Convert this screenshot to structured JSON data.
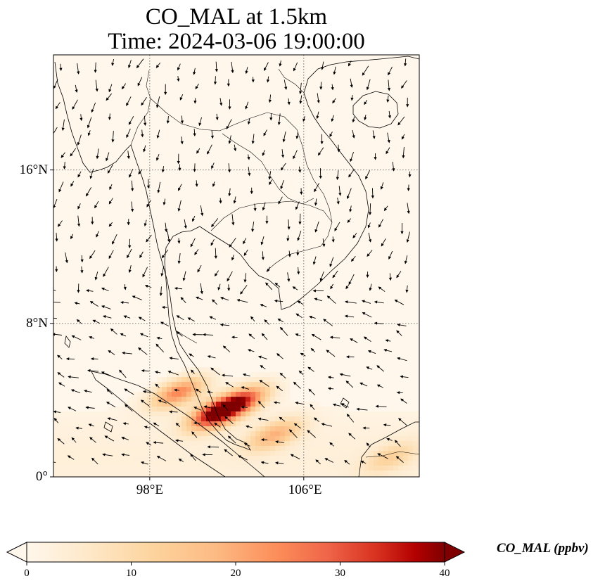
{
  "title_line1": "CO_MAL at 1.5km",
  "title_line2": "Time: 2024-03-06 19:00:00",
  "map": {
    "lon_range": [
      93,
      112
    ],
    "lat_range": [
      0,
      22
    ],
    "y_ticks": [
      {
        "value": 16,
        "label": "16°N"
      },
      {
        "value": 8,
        "label": "8°N"
      },
      {
        "value": 0,
        "label": "0°"
      }
    ],
    "x_ticks": [
      {
        "value": 98,
        "label": "98°E"
      },
      {
        "value": 106,
        "label": "106°E"
      }
    ],
    "gridlines": "dotted",
    "colormap": "OrRd",
    "plumes": [
      {
        "lon": 101.5,
        "lat": 3.3,
        "peak": 38
      },
      {
        "lon": 99.5,
        "lat": 4.4,
        "peak": 24
      },
      {
        "lon": 102.8,
        "lat": 4.0,
        "peak": 26
      },
      {
        "lon": 104.5,
        "lat": 2.2,
        "peak": 17
      },
      {
        "lon": 110.5,
        "lat": 1.0,
        "peak": 10
      }
    ]
  },
  "colorbar": {
    "label": "CO_MAL (ppbv)",
    "min": 0,
    "max": 40,
    "ticks": [
      {
        "value": 0,
        "label": "0"
      },
      {
        "value": 10,
        "label": "10"
      },
      {
        "value": 20,
        "label": "20"
      },
      {
        "value": 30,
        "label": "30"
      },
      {
        "value": 40,
        "label": "40"
      }
    ],
    "extend": "both"
  }
}
